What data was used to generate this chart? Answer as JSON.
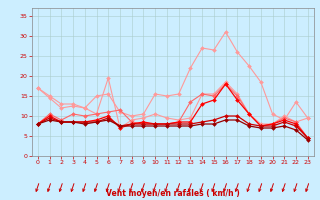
{
  "x": [
    0,
    1,
    2,
    3,
    4,
    5,
    6,
    7,
    8,
    9,
    10,
    11,
    12,
    13,
    14,
    15,
    16,
    17,
    18,
    19,
    20,
    21,
    22,
    23
  ],
  "series": [
    {
      "color": "#ff9999",
      "linewidth": 0.8,
      "markersize": 2.0,
      "y": [
        17,
        14.5,
        12,
        12.5,
        12,
        15,
        15.5,
        11,
        10,
        10.5,
        15.5,
        15,
        15.5,
        22,
        27,
        26.5,
        31,
        26,
        22.5,
        18.5,
        10.5,
        9,
        13.5,
        9.5
      ]
    },
    {
      "color": "#ff9999",
      "linewidth": 0.8,
      "markersize": 2.0,
      "y": [
        17,
        15,
        13,
        13,
        12,
        10.5,
        19.5,
        7,
        9,
        9.5,
        10.5,
        9.5,
        9,
        9.5,
        15.5,
        15.5,
        18.5,
        15.5,
        10.5,
        8,
        8,
        10,
        8.5,
        9.5
      ]
    },
    {
      "color": "#ff6666",
      "linewidth": 0.8,
      "markersize": 2.0,
      "y": [
        8,
        10.5,
        9,
        10.5,
        10,
        10.5,
        11,
        11.5,
        8.5,
        8,
        8,
        8,
        8.5,
        13.5,
        15.5,
        15,
        18,
        15,
        10.5,
        7.5,
        8,
        9.5,
        8.5,
        4.5
      ]
    },
    {
      "color": "#ff0000",
      "linewidth": 0.9,
      "markersize": 2.0,
      "y": [
        8,
        10,
        8.5,
        8.5,
        8.5,
        9,
        10,
        7,
        8,
        8.5,
        8,
        8,
        8.5,
        8.5,
        13,
        14,
        18,
        14,
        10.5,
        7.5,
        8,
        9,
        8,
        4.5
      ]
    },
    {
      "color": "#cc0000",
      "linewidth": 0.9,
      "markersize": 2.0,
      "y": [
        8,
        9.5,
        8.5,
        8.5,
        8.5,
        8.5,
        9.5,
        7.5,
        8,
        8,
        8,
        8,
        8,
        8,
        8.5,
        9,
        10,
        10,
        8,
        7.5,
        7.5,
        8.5,
        7.5,
        4.5
      ]
    },
    {
      "color": "#990000",
      "linewidth": 0.9,
      "markersize": 2.0,
      "y": [
        8,
        9,
        8.5,
        8.5,
        8,
        8.5,
        9,
        7.5,
        7.5,
        7.5,
        7.5,
        7.5,
        7.5,
        7.5,
        8,
        8,
        9,
        9,
        7.5,
        7,
        7,
        7.5,
        6.5,
        4
      ]
    }
  ],
  "xlabel": "Vent moyen/en rafales ( km/h )",
  "xlim": [
    -0.5,
    23.5
  ],
  "ylim": [
    0,
    37
  ],
  "yticks": [
    0,
    5,
    10,
    15,
    20,
    25,
    30,
    35
  ],
  "xticks": [
    0,
    1,
    2,
    3,
    4,
    5,
    6,
    7,
    8,
    9,
    10,
    11,
    12,
    13,
    14,
    15,
    16,
    17,
    18,
    19,
    20,
    21,
    22,
    23
  ],
  "bg_color": "#cceeff",
  "grid_color": "#aacccc",
  "label_color": "#cc0000",
  "tick_color": "#cc0000",
  "arrow_color": "#cc0000"
}
